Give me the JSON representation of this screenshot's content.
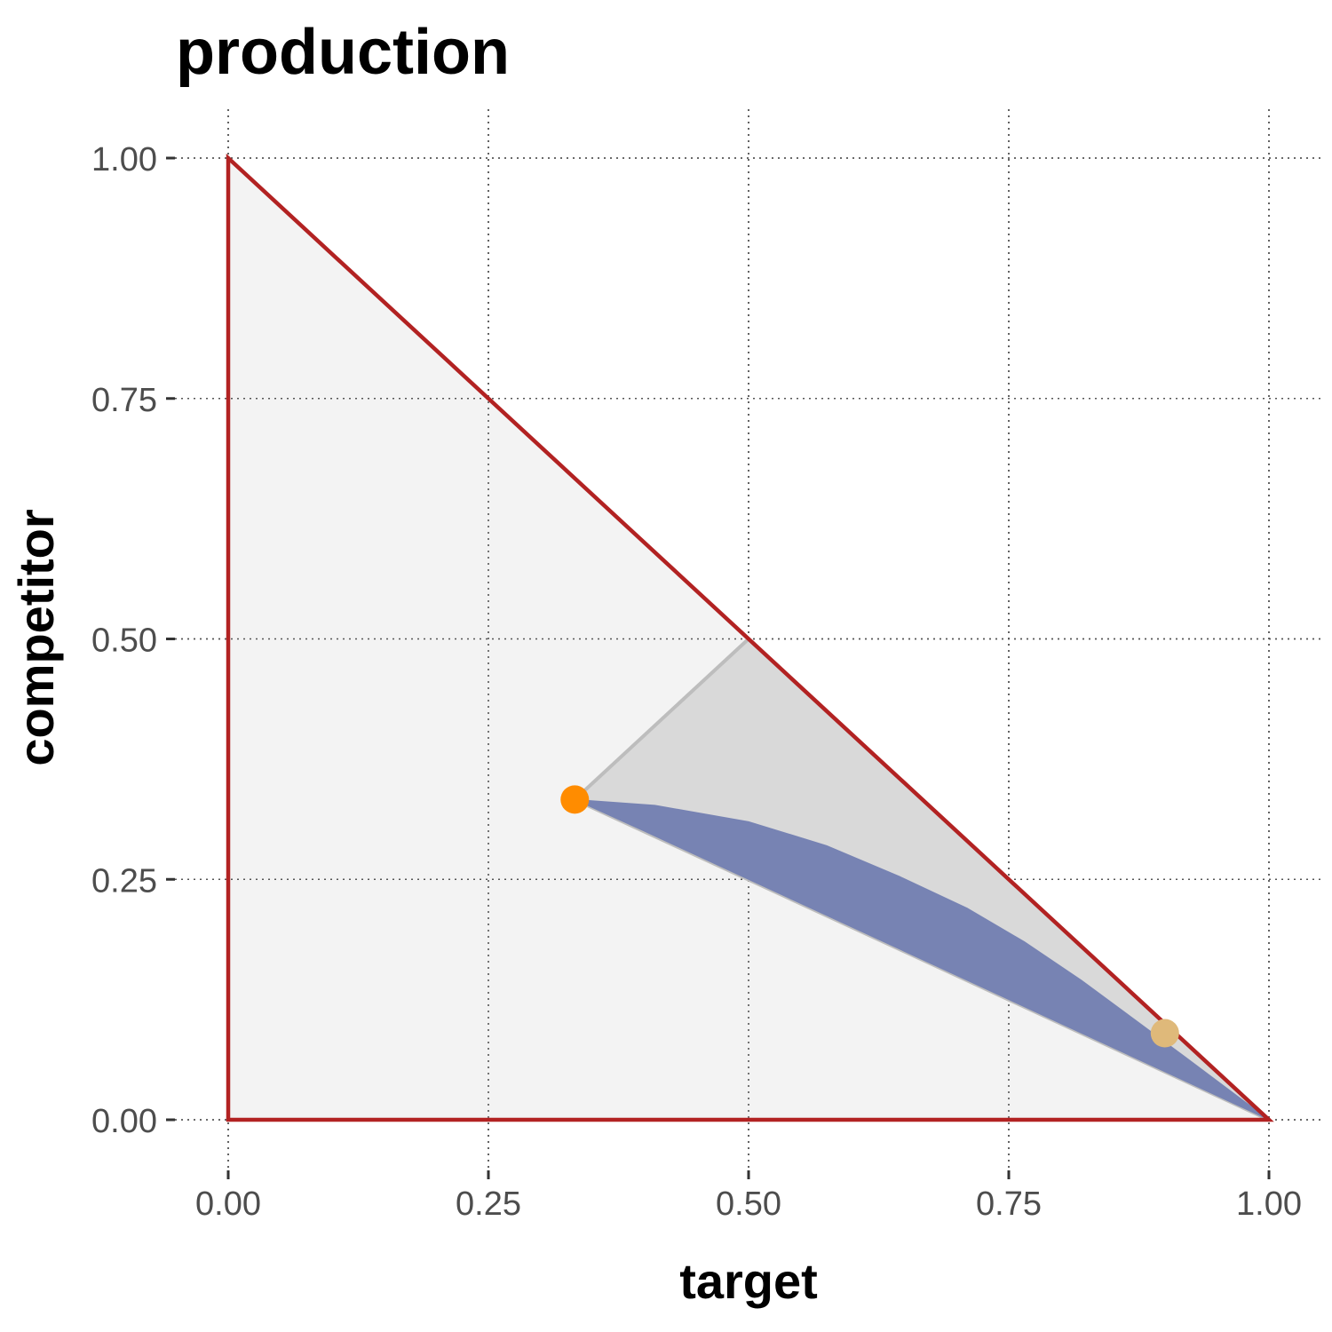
{
  "chart_data": {
    "type": "area",
    "title": "production",
    "xlabel": "target",
    "ylabel": "competitor",
    "xlim": [
      0,
      1
    ],
    "ylim": [
      0,
      1
    ],
    "x_ticks": [
      "0.00",
      "0.25",
      "0.50",
      "0.75",
      "1.00"
    ],
    "y_ticks": [
      "0.00",
      "0.25",
      "0.50",
      "0.75",
      "1.00"
    ],
    "grid": true,
    "colors": {
      "simplex_fill": "#f3f3f3",
      "simplex_outline": "#b22222",
      "grey_region": "#d9d9d9",
      "grey_edge": "#bdbdbd",
      "blue_region": "#7783b3",
      "point_a": "#ff8c00",
      "point_b": "#dfb97a"
    },
    "simplex": [
      [
        0,
        0
      ],
      [
        1,
        0
      ],
      [
        0,
        1
      ]
    ],
    "grey_region": [
      [
        0.333,
        0.333
      ],
      [
        0.5,
        0.5
      ],
      [
        1,
        0
      ]
    ],
    "blue_region": [
      [
        0.333,
        0.333
      ],
      [
        0.41,
        0.327
      ],
      [
        0.5,
        0.31
      ],
      [
        0.575,
        0.285
      ],
      [
        0.645,
        0.253
      ],
      [
        0.71,
        0.22
      ],
      [
        0.765,
        0.185
      ],
      [
        0.82,
        0.145
      ],
      [
        0.87,
        0.105
      ],
      [
        0.92,
        0.065
      ],
      [
        1,
        0
      ],
      [
        0.875,
        0.0625
      ],
      [
        0.75,
        0.125
      ],
      [
        0.625,
        0.1875
      ],
      [
        0.5,
        0.25
      ],
      [
        0.4,
        0.3
      ],
      [
        0.333,
        0.333
      ]
    ],
    "points": [
      {
        "x": 0.333,
        "y": 0.333,
        "color": "#ff8c00"
      },
      {
        "x": 0.9,
        "y": 0.09,
        "color": "#dfb97a"
      }
    ]
  }
}
